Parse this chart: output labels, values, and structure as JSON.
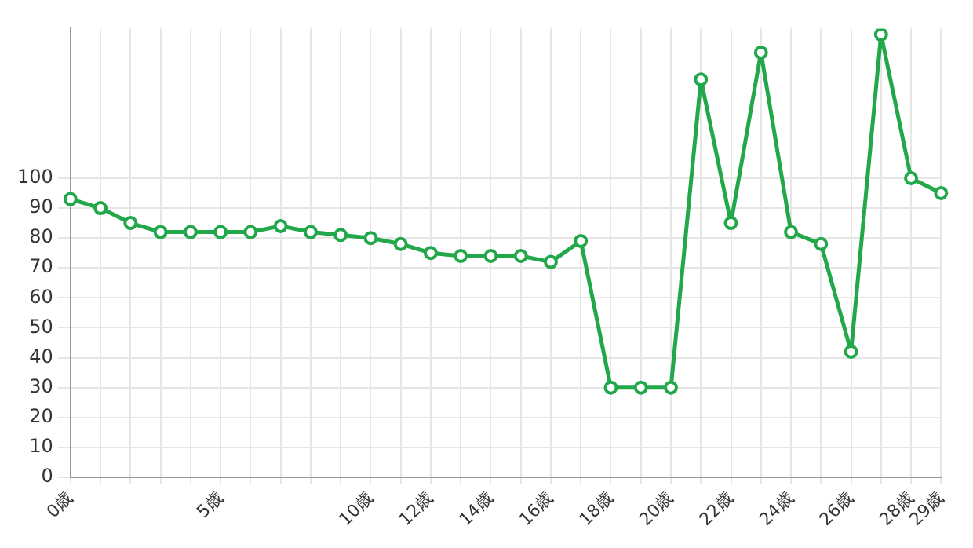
{
  "chart_data": {
    "type": "line",
    "categories": [
      "0歳",
      null,
      null,
      null,
      null,
      "5歳",
      null,
      null,
      null,
      null,
      "10歳",
      null,
      "12歳",
      null,
      "14歳",
      null,
      "16歳",
      null,
      "18歳",
      null,
      "20歳",
      null,
      "22歳",
      null,
      "24歳",
      null,
      "26歳",
      null,
      "28歳",
      "29歳"
    ],
    "series": [
      {
        "color": "#22a84a",
        "values": [
          93,
          90,
          85,
          82,
          82,
          82,
          82,
          84,
          82,
          81,
          80,
          78,
          75,
          74,
          74,
          74,
          72,
          79,
          30,
          30,
          30,
          133,
          85,
          142,
          82,
          78,
          42,
          148,
          100,
          95
        ]
      }
    ],
    "ylim": [
      0,
      150
    ],
    "yticks": [
      0,
      10,
      20,
      30,
      40,
      50,
      60,
      70,
      80,
      90,
      100
    ],
    "grid": true,
    "legend": false,
    "marker": "circle",
    "line_style": "solid"
  }
}
